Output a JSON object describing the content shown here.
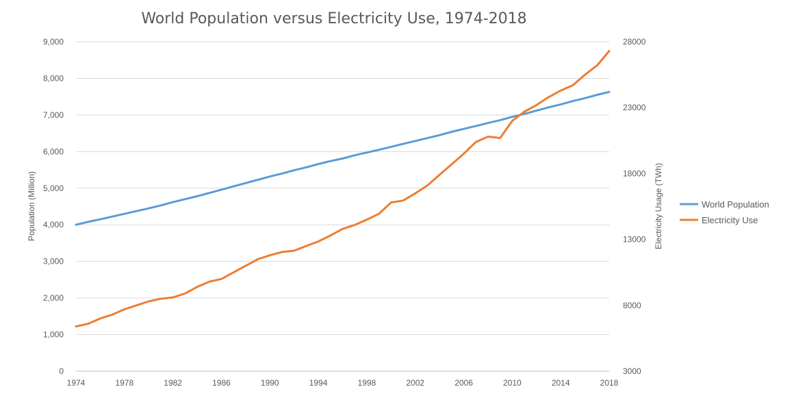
{
  "chart_data": {
    "type": "line",
    "title": "World Population versus Electricity Use, 1974-2018",
    "ylabel": "Population (Million)",
    "y2label": "Electricity Usage (TWh)",
    "xlabel": "",
    "xlim": [
      1974,
      2018
    ],
    "ylim": [
      0,
      9000
    ],
    "y2lim": [
      3000,
      28000
    ],
    "x_ticks": [
      "1974",
      "1978",
      "1982",
      "1986",
      "1990",
      "1994",
      "1998",
      "2002",
      "2006",
      "2010",
      "2014",
      "2018"
    ],
    "y_ticks": [
      "0",
      "1,000",
      "2,000",
      "3,000",
      "4,000",
      "5,000",
      "6,000",
      "7,000",
      "8,000",
      "9,000"
    ],
    "y2_ticks": [
      "3000",
      "8000",
      "13000",
      "18000",
      "23000",
      "28000"
    ],
    "grid": true,
    "legend": "right",
    "x": [
      1974,
      1975,
      1976,
      1977,
      1978,
      1979,
      1980,
      1981,
      1982,
      1983,
      1984,
      1985,
      1986,
      1987,
      1988,
      1989,
      1990,
      1991,
      1992,
      1993,
      1994,
      1995,
      1996,
      1997,
      1998,
      1999,
      2000,
      2001,
      2002,
      2003,
      2004,
      2005,
      2006,
      2007,
      2008,
      2009,
      2010,
      2011,
      2012,
      2013,
      2014,
      2015,
      2016,
      2017,
      2018
    ],
    "series": [
      {
        "name": "World Population",
        "axis": "left",
        "color": "#5b9bd5",
        "values": [
          4000,
          4080,
          4150,
          4225,
          4300,
          4375,
          4450,
          4530,
          4620,
          4700,
          4780,
          4870,
          4960,
          5050,
          5140,
          5230,
          5320,
          5400,
          5490,
          5570,
          5660,
          5740,
          5810,
          5900,
          5975,
          6050,
          6130,
          6210,
          6290,
          6370,
          6450,
          6540,
          6620,
          6700,
          6780,
          6860,
          6950,
          7030,
          7120,
          7210,
          7290,
          7380,
          7460,
          7550,
          7630
        ]
      },
      {
        "name": "Electricity Use",
        "axis": "right",
        "color": "#ed7d31",
        "values": [
          6400,
          6600,
          7000,
          7300,
          7700,
          8000,
          8300,
          8500,
          8600,
          8900,
          9400,
          9800,
          10000,
          10500,
          11000,
          11500,
          11800,
          12050,
          12150,
          12500,
          12850,
          13300,
          13800,
          14100,
          14500,
          14950,
          15800,
          15950,
          16500,
          17100,
          17900,
          18700,
          19500,
          20400,
          20800,
          20700,
          22000,
          22700,
          23200,
          23800,
          24300,
          24700,
          25500,
          26200,
          27300
        ]
      }
    ]
  }
}
